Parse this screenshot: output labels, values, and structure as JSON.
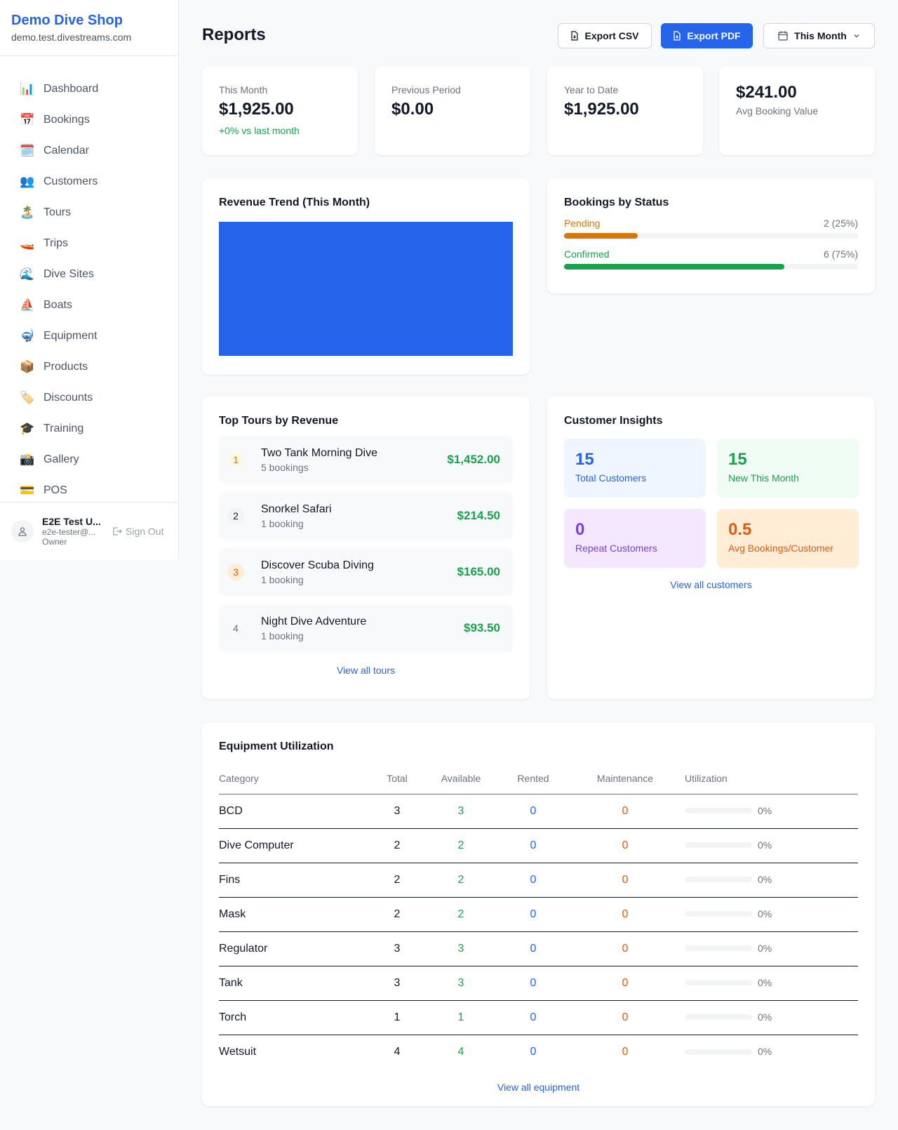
{
  "sidebar": {
    "brand": "Demo Dive Shop",
    "url": "demo.test.divestreams.com",
    "items": [
      {
        "label": "Dashboard",
        "icon": "📊"
      },
      {
        "label": "Bookings",
        "icon": "📅"
      },
      {
        "label": "Calendar",
        "icon": "🗓️"
      },
      {
        "label": "Customers",
        "icon": "👥"
      },
      {
        "label": "Tours",
        "icon": "🏝️"
      },
      {
        "label": "Trips",
        "icon": "🚤"
      },
      {
        "label": "Dive Sites",
        "icon": "🌊"
      },
      {
        "label": "Boats",
        "icon": "⛵"
      },
      {
        "label": "Equipment",
        "icon": "🤿"
      },
      {
        "label": "Products",
        "icon": "📦"
      },
      {
        "label": "Discounts",
        "icon": "🏷️"
      },
      {
        "label": "Training",
        "icon": "🎓"
      },
      {
        "label": "Gallery",
        "icon": "📸"
      },
      {
        "label": "POS",
        "icon": "💳"
      }
    ],
    "user": {
      "name": "E2E Test U...",
      "email": "e2e-tester@...",
      "role": "Owner",
      "sign_out": "Sign Out"
    }
  },
  "header": {
    "title": "Reports",
    "export_csv": "Export CSV",
    "export_pdf": "Export PDF",
    "period": "This Month"
  },
  "stats": [
    {
      "label": "This Month",
      "value": "$1,925.00",
      "change": "+0% vs last month"
    },
    {
      "label": "Previous Period",
      "value": "$0.00"
    },
    {
      "label": "Year to Date",
      "value": "$1,925.00"
    },
    {
      "value": "$241.00",
      "label": "Avg Booking Value"
    }
  ],
  "revenue": {
    "title": "Revenue Trend (This Month)",
    "color": "#2563eb"
  },
  "status": {
    "title": "Bookings by Status",
    "items": [
      {
        "label": "Pending",
        "count": "2 (25%)",
        "percent": 25,
        "color": "#d97706"
      },
      {
        "label": "Confirmed",
        "count": "6 (75%)",
        "percent": 75,
        "color": "#16a34a"
      }
    ]
  },
  "tours": {
    "title": "Top Tours by Revenue",
    "link": "View all tours",
    "items": [
      {
        "rank": "1",
        "name": "Two Tank Morning Dive",
        "bookings": "5 bookings",
        "revenue": "$1,452.00"
      },
      {
        "rank": "2",
        "name": "Snorkel Safari",
        "bookings": "1 booking",
        "revenue": "$214.50"
      },
      {
        "rank": "3",
        "name": "Discover Scuba Diving",
        "bookings": "1 booking",
        "revenue": "$165.00"
      },
      {
        "rank": "4",
        "name": "Night Dive Adventure",
        "bookings": "1 booking",
        "revenue": "$93.50"
      }
    ]
  },
  "insights": {
    "title": "Customer Insights",
    "link": "View all customers",
    "items": [
      {
        "value": "15",
        "label": "Total Customers"
      },
      {
        "value": "15",
        "label": "New This Month"
      },
      {
        "value": "0",
        "label": "Repeat Customers"
      },
      {
        "value": "0.5",
        "label": "Avg Bookings/Customer"
      }
    ]
  },
  "equipment": {
    "title": "Equipment Utilization",
    "link": "View all equipment",
    "columns": [
      "Category",
      "Total",
      "Available",
      "Rented",
      "Maintenance",
      "Utilization"
    ],
    "rows": [
      {
        "category": "BCD",
        "total": "3",
        "available": "3",
        "rented": "0",
        "maintenance": "0",
        "utilization": "0%"
      },
      {
        "category": "Dive Computer",
        "total": "2",
        "available": "2",
        "rented": "0",
        "maintenance": "0",
        "utilization": "0%"
      },
      {
        "category": "Fins",
        "total": "2",
        "available": "2",
        "rented": "0",
        "maintenance": "0",
        "utilization": "0%"
      },
      {
        "category": "Mask",
        "total": "2",
        "available": "2",
        "rented": "0",
        "maintenance": "0",
        "utilization": "0%"
      },
      {
        "category": "Regulator",
        "total": "3",
        "available": "3",
        "rented": "0",
        "maintenance": "0",
        "utilization": "0%"
      },
      {
        "category": "Tank",
        "total": "3",
        "available": "3",
        "rented": "0",
        "maintenance": "0",
        "utilization": "0%"
      },
      {
        "category": "Torch",
        "total": "1",
        "available": "1",
        "rented": "0",
        "maintenance": "0",
        "utilization": "0%"
      },
      {
        "category": "Wetsuit",
        "total": "4",
        "available": "4",
        "rented": "0",
        "maintenance": "0",
        "utilization": "0%"
      }
    ]
  }
}
